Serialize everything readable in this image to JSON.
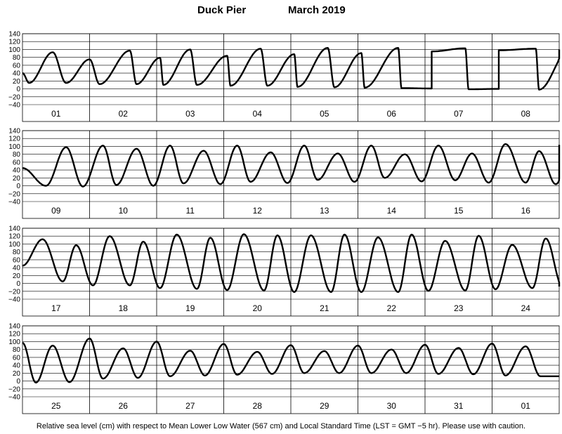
{
  "title": {
    "station": "Duck Pier",
    "month_year": "March   2019"
  },
  "footer": "Relative sea level (cm) with respect to Mean Lower Low Water (567 cm) and Local Standard Time (LST = GMT −5 hr). Please use with caution.",
  "chart_data": {
    "type": "line",
    "ylim": [
      -40,
      140
    ],
    "yticks": [
      140,
      120,
      100,
      80,
      60,
      40,
      20,
      0,
      -20,
      -40
    ],
    "ytick_labels": [
      "140",
      "120",
      "100",
      "80",
      "60",
      "40",
      "20",
      "0",
      "−20",
      "−40"
    ],
    "grid": true,
    "xunit": "days",
    "panels": [
      {
        "days": [
          "01",
          "02",
          "03",
          "04",
          "05",
          "06",
          "07",
          "08"
        ],
        "tide": {
          "start_level": 40,
          "highs": [
            [
              0.45,
              93
            ],
            [
              1.6,
              97
            ],
            [
              2.5,
              100
            ],
            [
              3.55,
              102
            ],
            [
              4.55,
              104
            ],
            [
              5.6,
              104
            ],
            [
              6.6,
              103
            ],
            [
              7.65,
              102
            ]
          ],
          "lows": [
            [
              0.1,
              15
            ],
            [
              1.15,
              12
            ],
            [
              2.1,
              10
            ],
            [
              3.1,
              8
            ],
            [
              4.1,
              5
            ],
            [
              5.1,
              3
            ],
            [
              6.1,
              1
            ],
            [
              7.1,
              0
            ]
          ],
          "highs2": [
            [
              1.0,
              75
            ],
            [
              2.05,
              79
            ],
            [
              3.05,
              84
            ],
            [
              4.05,
              88
            ],
            [
              5.05,
              91
            ],
            [
              6.1,
              95
            ],
            [
              7.1,
              98
            ],
            [
              8.15,
              100
            ]
          ],
          "lows2": [
            [
              0.65,
              15
            ],
            [
              1.7,
              12
            ],
            [
              2.6,
              10
            ],
            [
              3.65,
              8
            ],
            [
              4.65,
              4
            ],
            [
              5.65,
              2
            ],
            [
              6.65,
              -1
            ],
            [
              7.7,
              -2
            ]
          ]
        }
      },
      {
        "days": [
          "09",
          "10",
          "11",
          "12",
          "13",
          "14",
          "15",
          "16"
        ],
        "tide": {
          "start_level": 45,
          "highs": [
            [
              0.65,
              98
            ],
            [
              1.7,
              94
            ],
            [
              2.7,
              89
            ],
            [
              3.7,
              85
            ],
            [
              4.7,
              82
            ],
            [
              5.7,
              80
            ],
            [
              6.7,
              82
            ],
            [
              7.7,
              88
            ]
          ],
          "lows": [
            [
              0.35,
              0
            ],
            [
              1.4,
              2
            ],
            [
              2.4,
              6
            ],
            [
              3.4,
              10
            ],
            [
              4.4,
              15
            ],
            [
              5.4,
              20
            ],
            [
              6.45,
              14
            ],
            [
              7.5,
              8
            ]
          ],
          "highs2": [
            [
              1.2,
              102
            ],
            [
              2.2,
              102
            ],
            [
              3.2,
              102
            ],
            [
              4.2,
              102
            ],
            [
              5.2,
              102
            ],
            [
              6.2,
              102
            ],
            [
              7.2,
              106
            ],
            [
              8.2,
              104
            ]
          ],
          "lows2": [
            [
              0.9,
              -2
            ],
            [
              1.95,
              0
            ],
            [
              2.95,
              4
            ],
            [
              3.95,
              7
            ],
            [
              4.95,
              10
            ],
            [
              5.95,
              11
            ],
            [
              6.95,
              8
            ],
            [
              7.95,
              4
            ]
          ]
        }
      },
      {
        "days": [
          "17",
          "18",
          "19",
          "20",
          "21",
          "22",
          "23",
          "24"
        ],
        "tide": {
          "start_level": 45,
          "highs": [
            [
              0.3,
              112
            ],
            [
              1.3,
              120
            ],
            [
              2.3,
              124
            ],
            [
              3.3,
              125
            ],
            [
              4.3,
              122
            ],
            [
              5.3,
              117
            ],
            [
              6.3,
              108
            ],
            [
              7.3,
              98
            ]
          ],
          "lows": [
            [
              0.6,
              5
            ],
            [
              1.6,
              -5
            ],
            [
              2.6,
              -14
            ],
            [
              3.6,
              -18
            ],
            [
              4.6,
              -22
            ],
            [
              5.6,
              -22
            ],
            [
              6.6,
              -18
            ],
            [
              7.6,
              -12
            ]
          ],
          "highs2": [
            [
              0.8,
              97
            ],
            [
              1.8,
              106
            ],
            [
              2.8,
              116
            ],
            [
              3.8,
              122
            ],
            [
              4.8,
              124
            ],
            [
              5.8,
              124
            ],
            [
              6.8,
              121
            ],
            [
              7.8,
              114
            ]
          ],
          "lows2": [
            [
              1.05,
              -5
            ],
            [
              2.05,
              -12
            ],
            [
              3.05,
              -17
            ],
            [
              4.05,
              -22
            ],
            [
              5.05,
              -22
            ],
            [
              6.05,
              -19
            ],
            [
              7.05,
              -15
            ],
            [
              8.05,
              -8
            ]
          ]
        }
      },
      {
        "days": [
          "25",
          "26",
          "27",
          "28",
          "29",
          "30",
          "31",
          "01"
        ],
        "tide": {
          "start_level": 97,
          "highs": [
            [
              0.45,
              90
            ],
            [
              1.5,
              83
            ],
            [
              2.5,
              77
            ],
            [
              3.5,
              74
            ],
            [
              4.5,
              76
            ],
            [
              5.5,
              80
            ],
            [
              6.5,
              84
            ],
            [
              7.5,
              88
            ]
          ],
          "lows": [
            [
              0.2,
              -4
            ],
            [
              1.2,
              6
            ],
            [
              2.2,
              12
            ],
            [
              3.2,
              16
            ],
            [
              4.2,
              20
            ],
            [
              5.2,
              20
            ],
            [
              6.2,
              18
            ],
            [
              7.2,
              14
            ]
          ],
          "highs2": [
            [
              1.0,
              108
            ],
            [
              2.0,
              100
            ],
            [
              3.0,
              94
            ],
            [
              4.0,
              91
            ],
            [
              5.0,
              90
            ],
            [
              6.0,
              92
            ],
            [
              7.0,
              95
            ],
            [
              7.98,
              12
            ]
          ],
          "lows2": [
            [
              0.7,
              -3
            ],
            [
              1.72,
              8
            ],
            [
              2.72,
              14
            ],
            [
              3.72,
              18
            ],
            [
              4.72,
              20
            ],
            [
              5.72,
              20
            ],
            [
              6.72,
              17
            ],
            [
              7.72,
              12
            ]
          ]
        }
      }
    ]
  }
}
